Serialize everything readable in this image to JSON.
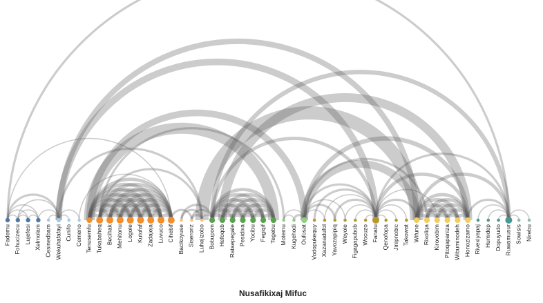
{
  "title": "Nusafikixaj Mifuc",
  "colors": {
    "arc": "#555555",
    "groups": [
      "#4e79a7",
      "#a0cbe8",
      "#f28e2b",
      "#ffbe7d",
      "#59a14f",
      "#8cd17d",
      "#b6992d",
      "#f1ce63",
      "#499894",
      "#86bcb6"
    ]
  },
  "nodes": [
    {
      "label": "Fademu",
      "group": 0,
      "size": 2
    },
    {
      "label": "Fohucizecu",
      "group": 0,
      "size": 2
    },
    {
      "label": "Lujefesi",
      "group": 0,
      "size": 2
    },
    {
      "label": "Xelmolam",
      "group": 0,
      "size": 2
    },
    {
      "label": "Cesinedbam",
      "group": 1,
      "size": 1
    },
    {
      "label": "Wekuhafafayi",
      "group": 1,
      "size": 2
    },
    {
      "label": "Cunifo",
      "group": 1,
      "size": 1
    },
    {
      "label": "Cemeno",
      "group": 1,
      "size": 1
    },
    {
      "label": "Tenusemfu",
      "group": 2,
      "size": 3
    },
    {
      "label": "Tukabaheq",
      "group": 2,
      "size": 4
    },
    {
      "label": "Becihak",
      "group": 2,
      "size": 4
    },
    {
      "label": "Mehitonu",
      "group": 2,
      "size": 4
    },
    {
      "label": "Logole",
      "group": 2,
      "size": 4
    },
    {
      "label": "Kutofaf",
      "group": 2,
      "size": 4
    },
    {
      "label": "Zadajeja",
      "group": 2,
      "size": 4
    },
    {
      "label": "Luvuco",
      "group": 2,
      "size": 4
    },
    {
      "label": "Cihebif",
      "group": 2,
      "size": 4
    },
    {
      "label": "Bacikoyuse",
      "group": 3,
      "size": 1
    },
    {
      "label": "Siseroriz",
      "group": 3,
      "size": 1
    },
    {
      "label": "Luhejizobo",
      "group": 3,
      "size": 1
    },
    {
      "label": "Bobupom",
      "group": 4,
      "size": 3
    },
    {
      "label": "Hefoqob",
      "group": 4,
      "size": 3
    },
    {
      "label": "Rataepegale",
      "group": 4,
      "size": 3
    },
    {
      "label": "Pesidixa",
      "group": 4,
      "size": 3
    },
    {
      "label": "Yocibu",
      "group": 4,
      "size": 3
    },
    {
      "label": "Fegiqif",
      "group": 4,
      "size": 3
    },
    {
      "label": "Tegebu",
      "group": 4,
      "size": 3
    },
    {
      "label": "Motemu",
      "group": 5,
      "size": 1
    },
    {
      "label": "Kugehodi",
      "group": 5,
      "size": 1
    },
    {
      "label": "Oufosat",
      "group": 5,
      "size": 3
    },
    {
      "label": "Vodopukequy",
      "group": 6,
      "size": 1
    },
    {
      "label": "Xazanadufol",
      "group": 6,
      "size": 1
    },
    {
      "label": "Yavozapipiq",
      "group": 6,
      "size": 1
    },
    {
      "label": "Weyole",
      "group": 6,
      "size": 1
    },
    {
      "label": "Figagapubob",
      "group": 6,
      "size": 1
    },
    {
      "label": "Wocuzo",
      "group": 6,
      "size": 1
    },
    {
      "label": "Fanatu",
      "group": 6,
      "size": 4
    },
    {
      "label": "Qenofopa",
      "group": 6,
      "size": 1
    },
    {
      "label": "Jinipnobic",
      "group": 6,
      "size": 1
    },
    {
      "label": "Takowat",
      "group": 6,
      "size": 1
    },
    {
      "label": "Wifune",
      "group": 7,
      "size": 3
    },
    {
      "label": "Rixoliqa",
      "group": 7,
      "size": 3
    },
    {
      "label": "Kirovobim",
      "group": 7,
      "size": 3
    },
    {
      "label": "Pitoqapaniza",
      "group": 7,
      "size": 3
    },
    {
      "label": "Wibuminodeh",
      "group": 7,
      "size": 3
    },
    {
      "label": "Honozizamo",
      "group": 7,
      "size": 3
    },
    {
      "label": "Rivexiyapaj",
      "group": 8,
      "size": 1
    },
    {
      "label": "Humidep",
      "group": 8,
      "size": 1
    },
    {
      "label": "Dopuyudo",
      "group": 8,
      "size": 1
    },
    {
      "label": "Ruwamusur",
      "group": 8,
      "size": 4
    },
    {
      "label": "Sowisis",
      "group": 9,
      "size": 1
    },
    {
      "label": "Nirebu",
      "group": 9,
      "size": 1
    }
  ],
  "links": [
    [
      0,
      1,
      1
    ],
    [
      0,
      2,
      1
    ],
    [
      0,
      3,
      1
    ],
    [
      1,
      2,
      1
    ],
    [
      1,
      3,
      1
    ],
    [
      2,
      3,
      1
    ],
    [
      0,
      5,
      2
    ],
    [
      1,
      5,
      1
    ],
    [
      3,
      5,
      1
    ],
    [
      5,
      6,
      1
    ],
    [
      5,
      7,
      1
    ],
    [
      4,
      5,
      1
    ],
    [
      0,
      16,
      1
    ],
    [
      0,
      49,
      2
    ],
    [
      5,
      19,
      2
    ],
    [
      5,
      36,
      6
    ],
    [
      5,
      40,
      5
    ],
    [
      8,
      9,
      3
    ],
    [
      8,
      10,
      3
    ],
    [
      8,
      11,
      3
    ],
    [
      8,
      12,
      3
    ],
    [
      8,
      13,
      3
    ],
    [
      8,
      14,
      3
    ],
    [
      8,
      15,
      3
    ],
    [
      8,
      16,
      3
    ],
    [
      9,
      10,
      3
    ],
    [
      9,
      11,
      3
    ],
    [
      9,
      12,
      3
    ],
    [
      9,
      13,
      3
    ],
    [
      9,
      14,
      3
    ],
    [
      9,
      15,
      3
    ],
    [
      9,
      16,
      3
    ],
    [
      10,
      11,
      3
    ],
    [
      10,
      12,
      3
    ],
    [
      10,
      13,
      3
    ],
    [
      10,
      14,
      3
    ],
    [
      10,
      15,
      3
    ],
    [
      10,
      16,
      3
    ],
    [
      11,
      12,
      3
    ],
    [
      11,
      13,
      3
    ],
    [
      11,
      14,
      3
    ],
    [
      11,
      15,
      3
    ],
    [
      11,
      16,
      3
    ],
    [
      12,
      13,
      3
    ],
    [
      12,
      14,
      3
    ],
    [
      12,
      15,
      3
    ],
    [
      12,
      16,
      3
    ],
    [
      13,
      14,
      3
    ],
    [
      13,
      15,
      3
    ],
    [
      13,
      16,
      3
    ],
    [
      14,
      15,
      3
    ],
    [
      14,
      16,
      3
    ],
    [
      15,
      16,
      3
    ],
    [
      7,
      16,
      1
    ],
    [
      9,
      27,
      2
    ],
    [
      9,
      19,
      2
    ],
    [
      8,
      26,
      10
    ],
    [
      8,
      29,
      6
    ],
    [
      16,
      18,
      2
    ],
    [
      17,
      19,
      2
    ],
    [
      18,
      19,
      2
    ],
    [
      18,
      20,
      2
    ],
    [
      19,
      20,
      1
    ],
    [
      17,
      20,
      2
    ],
    [
      20,
      21,
      3
    ],
    [
      20,
      22,
      3
    ],
    [
      20,
      23,
      3
    ],
    [
      20,
      24,
      3
    ],
    [
      20,
      25,
      3
    ],
    [
      20,
      26,
      3
    ],
    [
      21,
      22,
      3
    ],
    [
      21,
      23,
      3
    ],
    [
      21,
      24,
      3
    ],
    [
      21,
      25,
      3
    ],
    [
      21,
      26,
      3
    ],
    [
      22,
      23,
      3
    ],
    [
      22,
      24,
      3
    ],
    [
      22,
      25,
      3
    ],
    [
      22,
      26,
      3
    ],
    [
      23,
      24,
      3
    ],
    [
      23,
      25,
      3
    ],
    [
      23,
      26,
      3
    ],
    [
      24,
      25,
      3
    ],
    [
      24,
      26,
      3
    ],
    [
      25,
      26,
      3
    ],
    [
      19,
      40,
      12
    ],
    [
      20,
      49,
      4
    ],
    [
      20,
      36,
      3
    ],
    [
      21,
      45,
      8
    ],
    [
      27,
      28,
      1
    ],
    [
      28,
      29,
      2
    ],
    [
      27,
      29,
      1
    ],
    [
      29,
      36,
      2
    ],
    [
      29,
      31,
      1
    ],
    [
      29,
      32,
      2
    ],
    [
      29,
      33,
      1
    ],
    [
      29,
      40,
      7
    ],
    [
      29,
      45,
      4
    ],
    [
      29,
      41,
      2
    ],
    [
      30,
      36,
      2
    ],
    [
      31,
      36,
      1
    ],
    [
      32,
      36,
      2
    ],
    [
      33,
      36,
      1
    ],
    [
      34,
      36,
      1
    ],
    [
      35,
      36,
      1
    ],
    [
      36,
      37,
      1
    ],
    [
      36,
      38,
      1
    ],
    [
      36,
      39,
      1
    ],
    [
      36,
      40,
      2
    ],
    [
      36,
      45,
      3
    ],
    [
      36,
      42,
      1
    ],
    [
      40,
      41,
      3
    ],
    [
      40,
      42,
      3
    ],
    [
      40,
      43,
      3
    ],
    [
      40,
      44,
      3
    ],
    [
      40,
      45,
      3
    ],
    [
      41,
      42,
      3
    ],
    [
      41,
      43,
      3
    ],
    [
      41,
      44,
      3
    ],
    [
      41,
      45,
      3
    ],
    [
      42,
      43,
      3
    ],
    [
      42,
      44,
      3
    ],
    [
      42,
      45,
      3
    ],
    [
      43,
      44,
      3
    ],
    [
      43,
      45,
      3
    ],
    [
      44,
      45,
      3
    ],
    [
      40,
      49,
      3
    ],
    [
      36,
      49,
      2
    ],
    [
      45,
      49,
      2
    ],
    [
      46,
      49,
      1
    ],
    [
      47,
      49,
      1
    ],
    [
      48,
      49,
      1
    ],
    [
      49,
      50,
      1
    ],
    [
      49,
      51,
      1
    ]
  ]
}
